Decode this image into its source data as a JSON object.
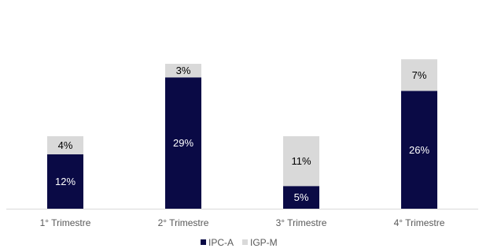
{
  "chart_data": {
    "type": "bar",
    "stacked": true,
    "categories": [
      "1° Trimestre",
      "2° Trimestre",
      "3° Trimestre",
      "4° Trimestre"
    ],
    "series": [
      {
        "name": "IPC-A",
        "values": [
          12,
          29,
          5,
          26
        ],
        "labels": [
          "12%",
          "29%",
          "5%",
          "26%"
        ],
        "color": "#0a0a45",
        "label_color": "#ffffff"
      },
      {
        "name": "IGP-M",
        "values": [
          4,
          3,
          11,
          7
        ],
        "labels": [
          "4%",
          "3%",
          "11%",
          "7%"
        ],
        "color": "#d9d9d9",
        "label_color": "#000000"
      }
    ],
    "title": "",
    "xlabel": "",
    "ylabel": "",
    "ylim": [
      0,
      36
    ],
    "grid": false,
    "legend_position": "bottom-center",
    "axis_color": "#d9d9d9"
  }
}
